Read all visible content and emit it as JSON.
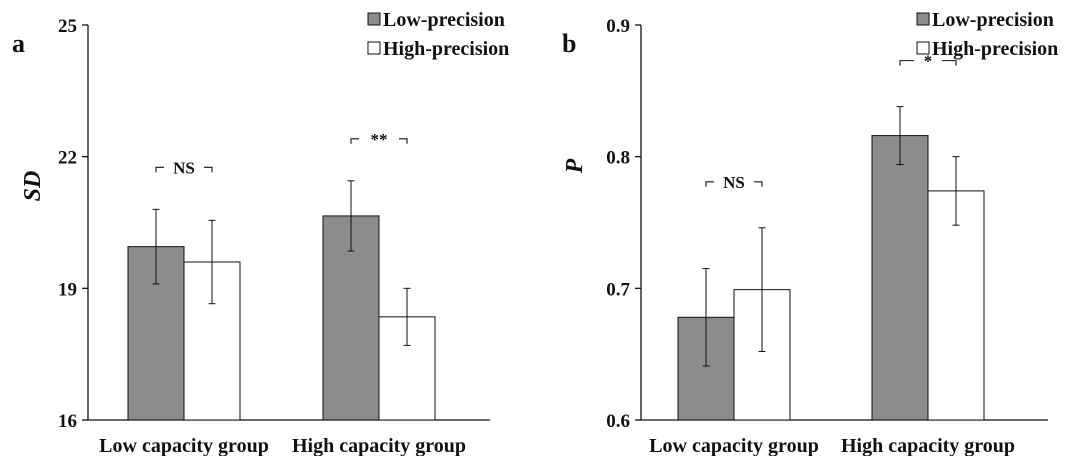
{
  "figure": {
    "legend_low": "Low-precision",
    "legend_high": "High-precision"
  },
  "colors": {
    "low_bar": "#8c8c8c",
    "high_bar": "#ffffff",
    "stroke": "#111111"
  },
  "chart_data": [
    {
      "type": "bar",
      "panel_label": "a",
      "ylabel": "SD",
      "xlabel": "",
      "ylim": [
        16,
        25
      ],
      "yticks": [
        16,
        19,
        22,
        25
      ],
      "ytick_labels": [
        "16",
        "19",
        "22",
        "25"
      ],
      "categories": [
        "Low capacity group",
        "High capacity group"
      ],
      "series": [
        {
          "name": "Low-precision",
          "values": [
            19.95,
            20.65
          ],
          "errors": [
            0.85,
            0.8
          ]
        },
        {
          "name": "High-precision",
          "values": [
            19.6,
            18.35
          ],
          "errors": [
            0.95,
            0.65
          ]
        }
      ],
      "significance": [
        "NS",
        "**"
      ],
      "legend_position": "top-right"
    },
    {
      "type": "bar",
      "panel_label": "b",
      "ylabel": "P",
      "xlabel": "",
      "ylim": [
        0.6,
        0.9
      ],
      "yticks": [
        0.6,
        0.7,
        0.8,
        0.9
      ],
      "ytick_labels": [
        "0.6",
        "0.7",
        "0.8",
        "0.9"
      ],
      "categories": [
        "Low capacity group",
        "High capacity group"
      ],
      "series": [
        {
          "name": "Low-precision",
          "values": [
            0.678,
            0.816
          ],
          "errors": [
            0.037,
            0.022
          ]
        },
        {
          "name": "High-precision",
          "values": [
            0.699,
            0.774
          ],
          "errors": [
            0.047,
            0.026
          ]
        }
      ],
      "significance": [
        "NS",
        "*"
      ],
      "legend_position": "top-right"
    }
  ]
}
